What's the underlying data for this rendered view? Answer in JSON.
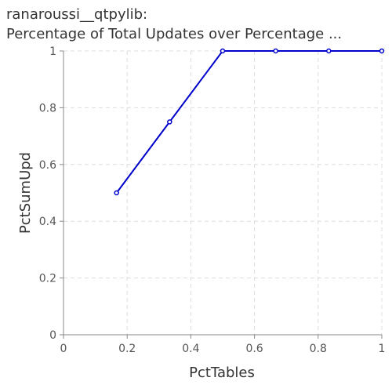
{
  "chart_data": {
    "type": "line",
    "title_lines": [
      "ranaroussi__qtpylib:",
      "Percentage of Total Updates over Percentage ..."
    ],
    "xlabel": "PctTables",
    "ylabel": "PctSumUpd",
    "xlim": [
      0,
      1
    ],
    "ylim": [
      0,
      1
    ],
    "xticks": [
      "0",
      "0.2",
      "0.4",
      "0.6",
      "0.8",
      "1"
    ],
    "yticks": [
      "0",
      "0.2",
      "0.4",
      "0.6",
      "0.8",
      "1"
    ],
    "grid": true,
    "series": [
      {
        "x": [
          0.1667,
          0.3333,
          0.5,
          0.6667,
          0.8333,
          1.0
        ],
        "y": [
          0.5,
          0.75,
          1.0,
          1.0,
          1.0,
          1.0
        ],
        "color": "#0000cc"
      }
    ]
  }
}
